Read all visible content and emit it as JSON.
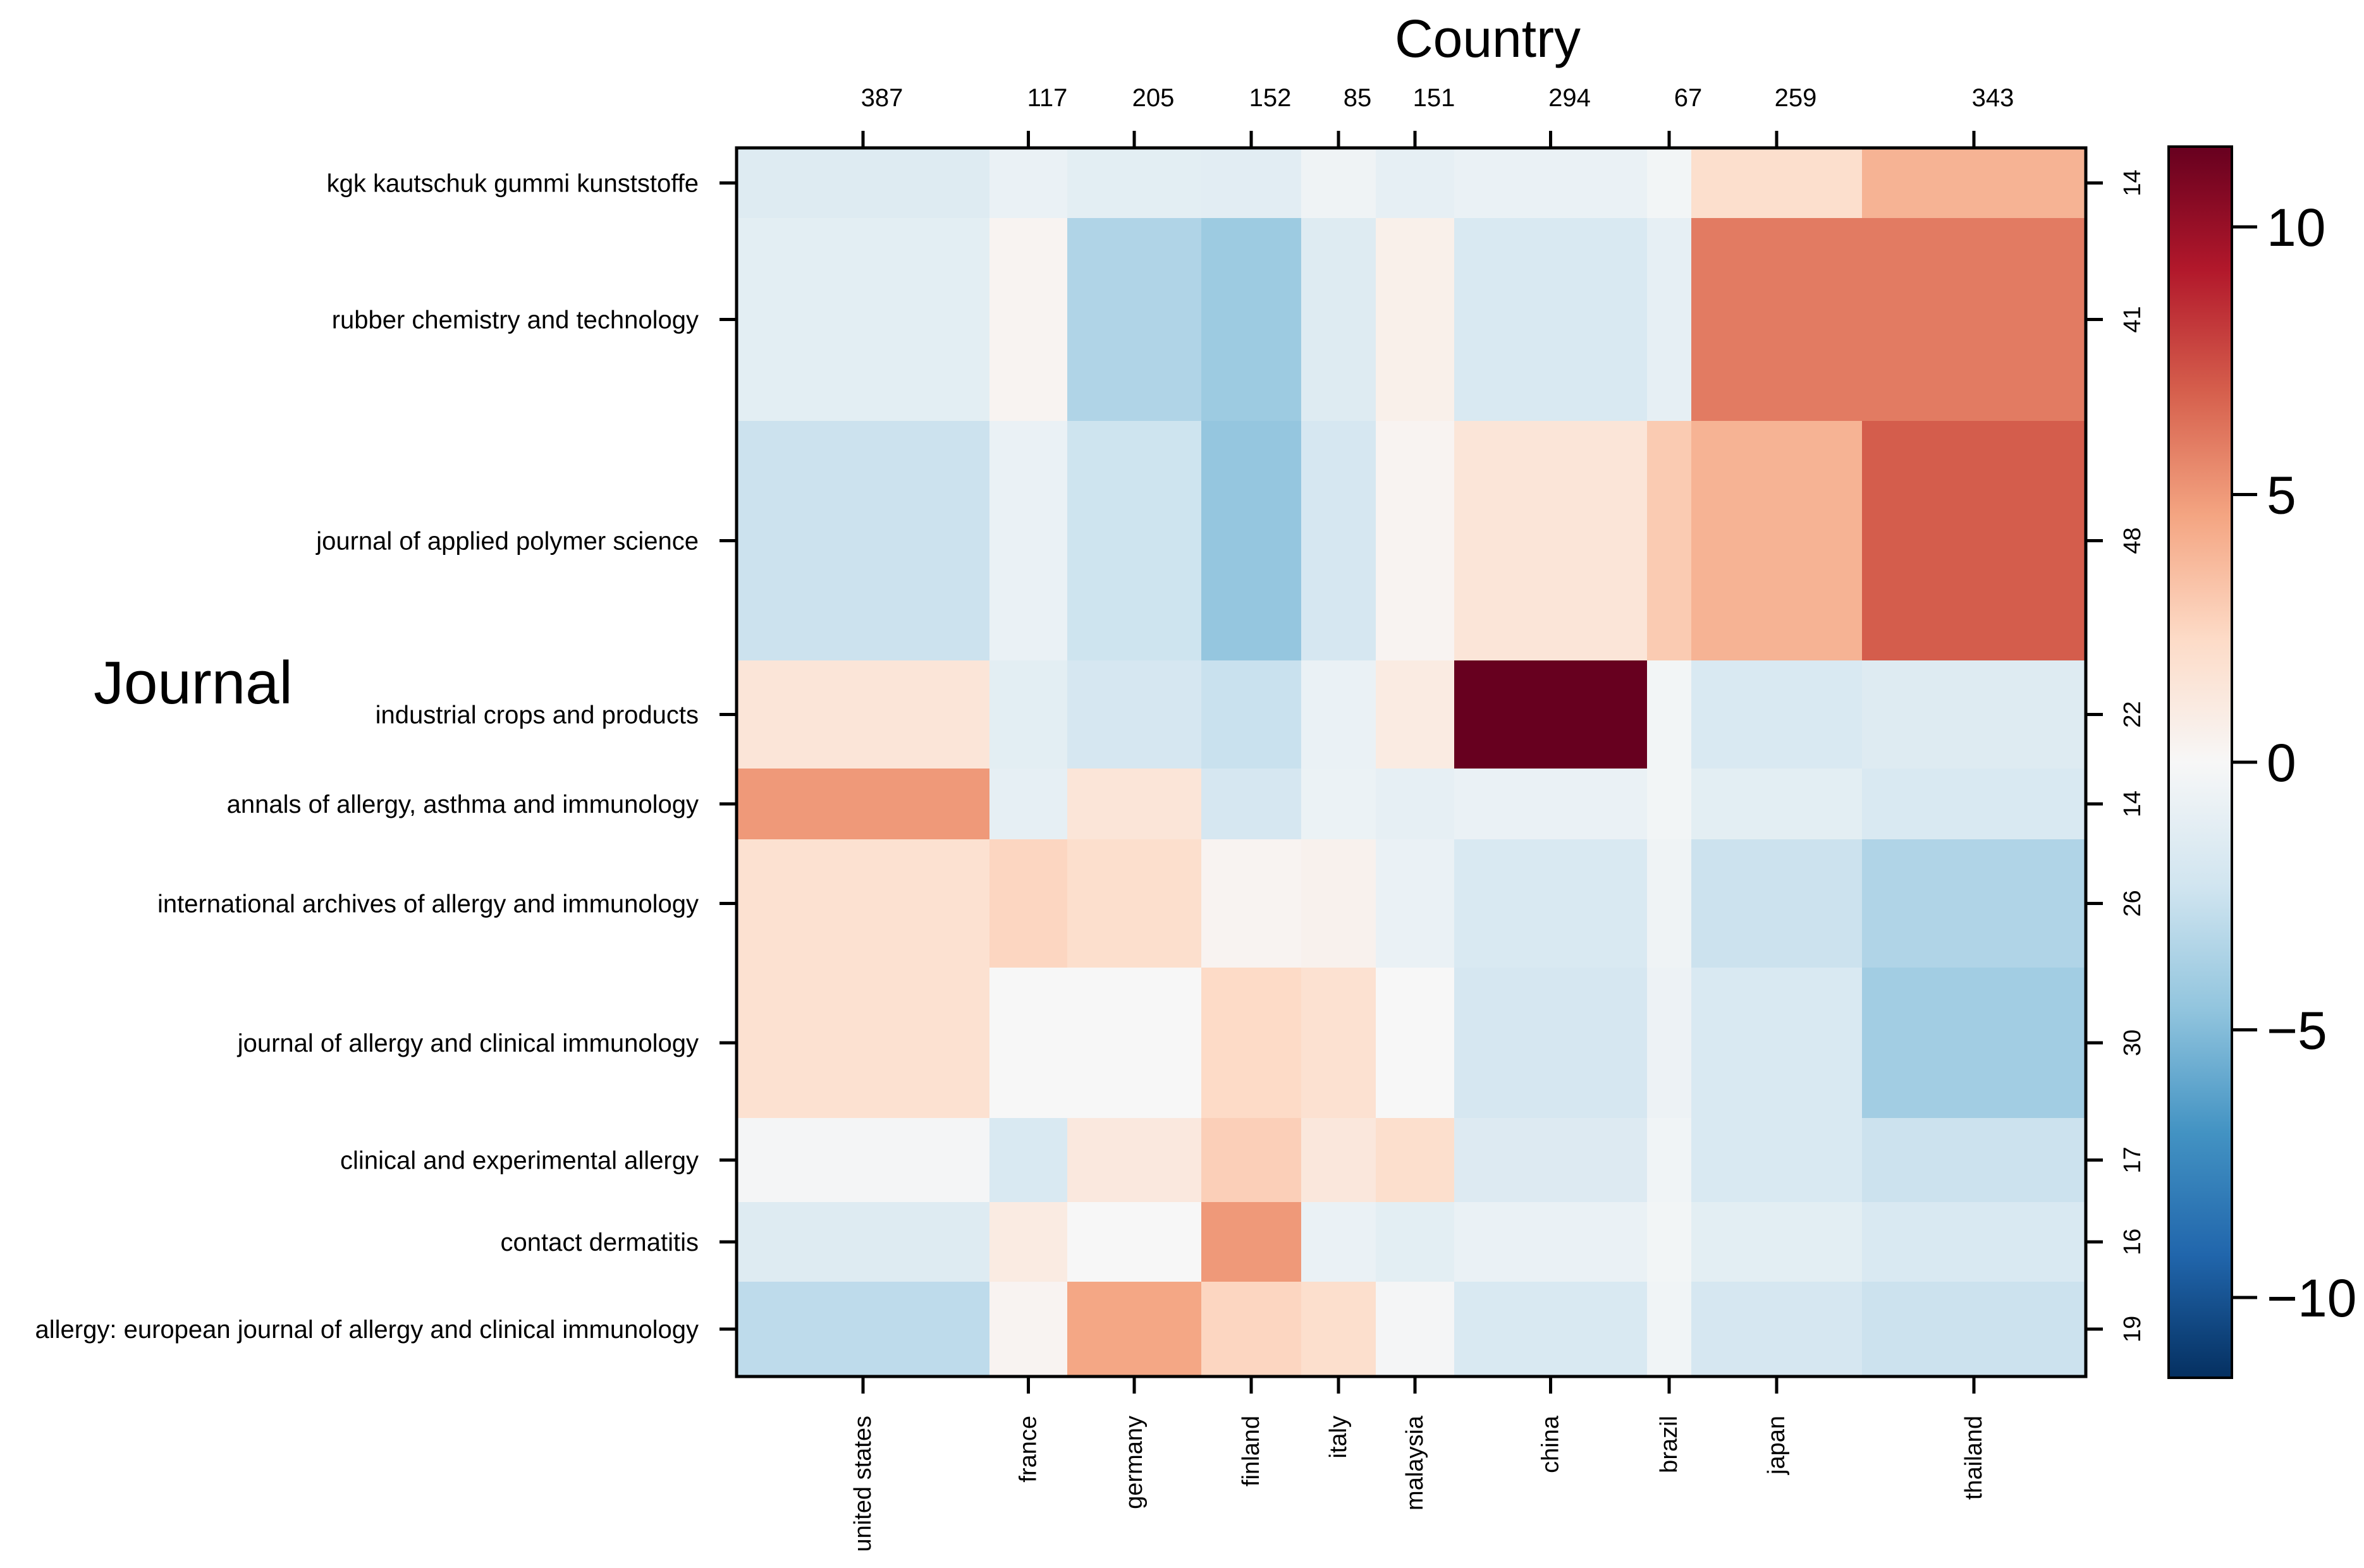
{
  "chart_data": {
    "type": "heatmap",
    "title": "Country",
    "ylabel": "Journal",
    "columns": [
      {
        "name": "united states",
        "total": "387"
      },
      {
        "name": "france",
        "total": "117"
      },
      {
        "name": "germany",
        "total": "205"
      },
      {
        "name": "finland",
        "total": "152"
      },
      {
        "name": "italy",
        "total": "85"
      },
      {
        "name": "malaysia",
        "total": "151"
      },
      {
        "name": "china",
        "total": "294"
      },
      {
        "name": "brazil",
        "total": "67"
      },
      {
        "name": "japan",
        "total": "259"
      },
      {
        "name": "thailand",
        "total": "343"
      }
    ],
    "rows": [
      {
        "name": "kgk kautschuk gummi kunststoffe",
        "total": "14"
      },
      {
        "name": "rubber chemistry and technology",
        "total": "41"
      },
      {
        "name": "journal of applied polymer science",
        "total": "48"
      },
      {
        "name": "industrial crops and products",
        "total": "22"
      },
      {
        "name": "annals of allergy, asthma and immunology",
        "total": "14"
      },
      {
        "name": "international archives of allergy and immunology",
        "total": "26"
      },
      {
        "name": "journal of allergy and clinical immunology",
        "total": "30"
      },
      {
        "name": "clinical and experimental allergy",
        "total": "17"
      },
      {
        "name": "contact dermatitis",
        "total": "16"
      },
      {
        "name": "allergy: european journal of allergy and clinical immunology",
        "total": "19"
      }
    ],
    "values": [
      [
        -1.5,
        -0.8,
        -1.2,
        -1.3,
        -0.5,
        -1.0,
        -0.8,
        -0.3,
        2.0,
        4.0
      ],
      [
        -1.2,
        0.3,
        -3.5,
        -4.2,
        -1.5,
        0.6,
        -1.8,
        -1.0,
        6.0,
        6.0
      ],
      [
        -2.5,
        -0.8,
        -2.4,
        -4.5,
        -2.0,
        0.3,
        1.5,
        3.0,
        4.0,
        7.0
      ],
      [
        1.5,
        -1.2,
        -2.0,
        -2.6,
        -0.8,
        1.0,
        11.5,
        -0.3,
        -1.8,
        -1.5
      ],
      [
        5.0,
        -1.0,
        1.5,
        -2.0,
        -0.7,
        -1.0,
        -0.8,
        -0.3,
        -1.2,
        -1.8
      ],
      [
        1.8,
        2.5,
        2.0,
        0.3,
        0.5,
        -0.8,
        -1.8,
        -0.5,
        -2.5,
        -3.5
      ],
      [
        1.8,
        0.0,
        0.0,
        2.3,
        1.8,
        0.0,
        -2.0,
        -0.6,
        -1.8,
        -4.0
      ],
      [
        -0.2,
        -1.8,
        1.2,
        2.8,
        1.3,
        2.0,
        -1.6,
        -0.4,
        -1.8,
        -2.5
      ],
      [
        -1.5,
        1.0,
        0.0,
        5.0,
        -0.8,
        -1.2,
        -0.8,
        -0.3,
        -1.2,
        -1.8
      ],
      [
        -3.0,
        0.3,
        4.5,
        2.5,
        2.0,
        -0.2,
        -1.8,
        -0.4,
        -2.0,
        -2.5
      ]
    ],
    "colorbar": {
      "min": -11.5,
      "max": 11.5,
      "ticks": [
        10,
        5,
        0,
        -5,
        -10
      ],
      "tick_labels": [
        "10",
        "5",
        "0",
        "−5",
        "−10"
      ],
      "colors": [
        "#053061",
        "#2166ac",
        "#4393c3",
        "#92c5de",
        "#d1e5f0",
        "#f7f7f7",
        "#fddbc7",
        "#f4a582",
        "#d6604d",
        "#b2182b",
        "#67001f"
      ]
    }
  }
}
